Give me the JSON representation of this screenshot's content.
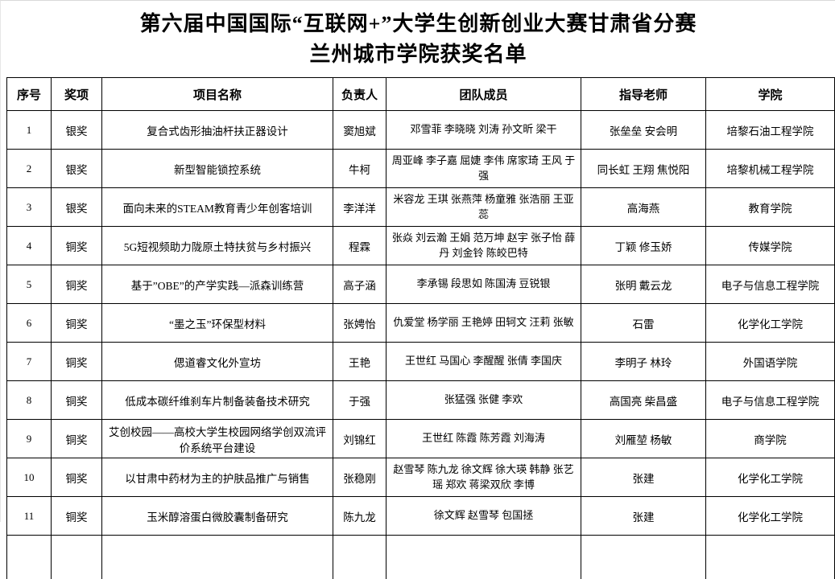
{
  "page": {
    "title_line1": "第六届中国国际“互联网+”大学生创新创业大赛甘肃省分赛",
    "title_line2": "兰州城市学院获奖名单"
  },
  "table": {
    "headers": [
      "序号",
      "奖项",
      "项目名称",
      "负责人",
      "团队成员",
      "指导老师",
      "学院"
    ],
    "rows": [
      {
        "no": "1",
        "award": "银奖",
        "project": "复合式齿形抽油杆扶正器设计",
        "leader": "窦旭斌",
        "members": "邓雪菲 李晓晓 刘涛 孙文昕 梁干",
        "advisors": "张垒垒 安会明",
        "college": "培黎石油工程学院"
      },
      {
        "no": "2",
        "award": "银奖",
        "project": "新型智能锁控系统",
        "leader": "牛柯",
        "members": "周亚峰 李子嘉 屈婕 李伟 席家琦 王风 于强",
        "advisors": "同长虹 王翔 焦悦阳",
        "college": "培黎机械工程学院"
      },
      {
        "no": "3",
        "award": "银奖",
        "project": "面向未来的STEAM教育青少年创客培训",
        "leader": "李洋洋",
        "members": "米容龙 王琪 张燕萍 杨童雅 张浩丽 王亚蕊",
        "advisors": "高海燕",
        "college": "教育学院"
      },
      {
        "no": "4",
        "award": "铜奖",
        "project": "5G短视频助力陇原土特扶贫与乡村振兴",
        "leader": "程霖",
        "members": "张焱 刘云瀚 王娟 范万坤 赵宇 张子怡 薛丹 刘金铃 陈皎巴特",
        "advisors": "丁颖 修玉娇",
        "college": "传媒学院"
      },
      {
        "no": "5",
        "award": "铜奖",
        "project": "基于”OBE”的产学实践—派森训练营",
        "leader": "高子涵",
        "members": "李承锡 段思如 陈国涛 豆锐银",
        "advisors": "张明 戴云龙",
        "college": "电子与信息工程学院"
      },
      {
        "no": "6",
        "award": "铜奖",
        "project": "“墨之玉”环保型材料",
        "leader": "张娉怡",
        "members": "仇爱堂 杨学丽 王艳婷 田轲文 汪莉 张敏",
        "advisors": "石雷",
        "college": "化学化工学院"
      },
      {
        "no": "7",
        "award": "铜奖",
        "project": "偲道睿文化外宣坊",
        "leader": "王艳",
        "members": "王世红 马国心 李醒醒 张倩 李国庆",
        "advisors": "李明子 林玲",
        "college": "外国语学院"
      },
      {
        "no": "8",
        "award": "铜奖",
        "project": "低成本碳纤维刹车片制备装备技术研究",
        "leader": "于强",
        "members": "张猛强 张健 李欢",
        "advisors": "高国亮 柴昌盛",
        "college": "电子与信息工程学院"
      },
      {
        "no": "9",
        "award": "铜奖",
        "project": "艾创校园——高校大学生校园网络学创双流评价系统平台建设",
        "leader": "刘锦红",
        "members": "王世红 陈霞 陈芳霞 刘海涛",
        "advisors": "刘雁堃 杨敏",
        "college": "商学院"
      },
      {
        "no": "10",
        "award": "铜奖",
        "project": "以甘肃中药材为主的护肤品推广与销售",
        "leader": "张稳刚",
        "members": "赵雪琴 陈九龙 徐文辉 徐大瑛 韩静 张艺瑶 郑欢 蒋梁双欣 李博",
        "advisors": "张建",
        "college": "化学化工学院"
      },
      {
        "no": "11",
        "award": "铜奖",
        "project": "玉米醇溶蛋白微胶囊制备研究",
        "leader": "陈九龙",
        "members": "徐文辉 赵雪琴 包国拯",
        "advisors": "张建",
        "college": "化学化工学院"
      }
    ]
  }
}
